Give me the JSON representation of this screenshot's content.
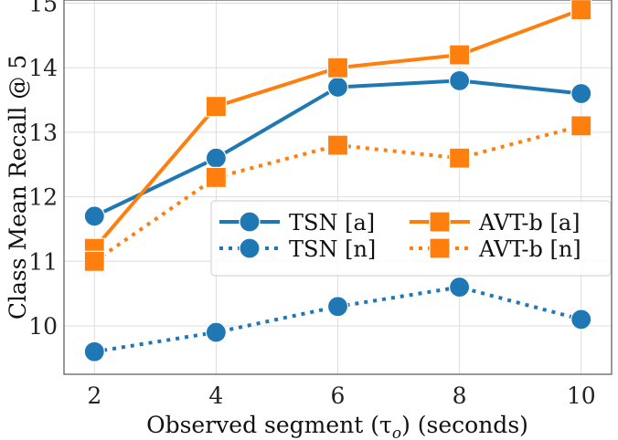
{
  "chart_data": {
    "type": "line",
    "title": "",
    "xlabel": "Observed segment (τ",
    "xlabel_sub": "o",
    "xlabel_tail": ") (seconds)",
    "ylabel": "Class Mean Recall @ 5",
    "x": [
      2,
      4,
      6,
      8,
      10
    ],
    "xlim": [
      1.5,
      10.5
    ],
    "ylim": [
      9.25,
      15.05
    ],
    "xticks": [
      2,
      4,
      6,
      8,
      10
    ],
    "yticks": [
      10,
      11,
      12,
      13,
      14,
      15
    ],
    "grid": true,
    "legend_position": "center-right",
    "series": [
      {
        "name": "TSN [a]",
        "values": [
          11.7,
          12.6,
          13.7,
          13.8,
          13.6
        ],
        "color": "#1f77b4",
        "linestyle": "solid",
        "marker": "circle"
      },
      {
        "name": "TSN [n]",
        "values": [
          9.6,
          9.9,
          10.3,
          10.6,
          10.1
        ],
        "color": "#1f77b4",
        "linestyle": "dotted",
        "marker": "circle"
      },
      {
        "name": "AVT-b [a]",
        "values": [
          11.2,
          13.4,
          14.0,
          14.2,
          14.9
        ],
        "color": "#ff7f0e",
        "linestyle": "solid",
        "marker": "square"
      },
      {
        "name": "AVT-b [n]",
        "values": [
          11.0,
          12.3,
          12.8,
          12.6,
          13.1
        ],
        "color": "#ff7f0e",
        "linestyle": "dotted",
        "marker": "square"
      }
    ]
  }
}
